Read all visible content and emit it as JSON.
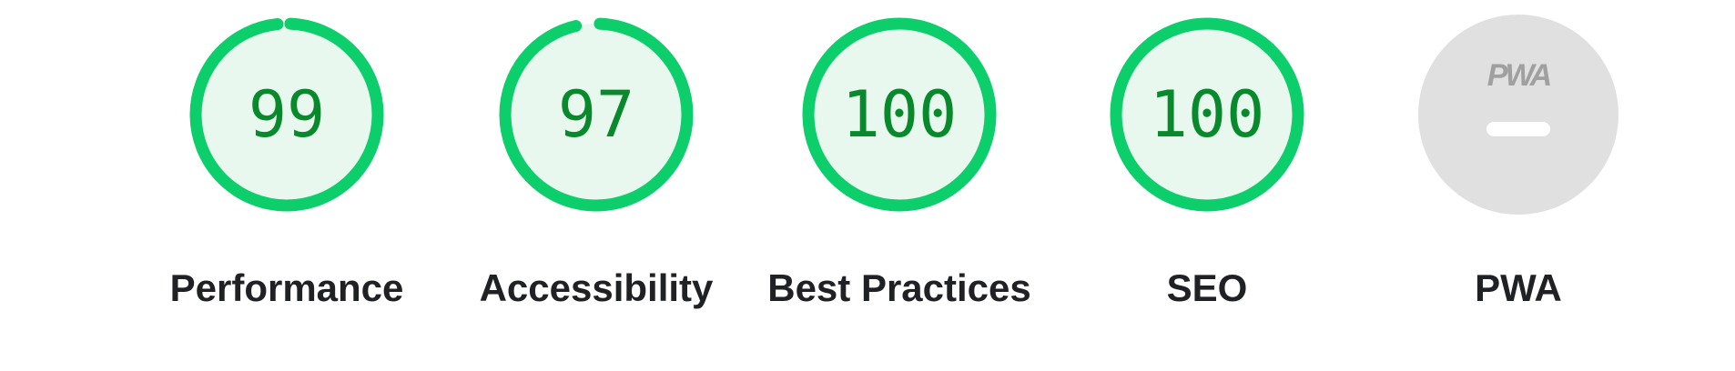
{
  "categories": [
    {
      "id": "performance",
      "label": "Performance",
      "score": "99",
      "fraction": 0.99
    },
    {
      "id": "accessibility",
      "label": "Accessibility",
      "score": "97",
      "fraction": 0.97
    },
    {
      "id": "best-practices",
      "label": "Best Practices",
      "score": "100",
      "fraction": 1.0
    },
    {
      "id": "seo",
      "label": "SEO",
      "score": "100",
      "fraction": 1.0
    }
  ],
  "pwa": {
    "label": "PWA",
    "badge_text": "PWA"
  },
  "colors": {
    "pass_ring": "#0cce6b",
    "pass_fill": "#e8f8ee",
    "pass_text": "#088a2c",
    "na_fill": "#e0e0e0",
    "label_text": "#202124"
  }
}
